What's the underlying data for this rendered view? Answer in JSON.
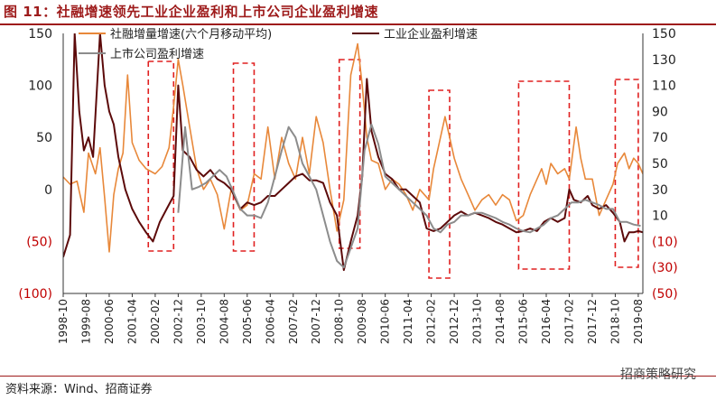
{
  "figure": {
    "title": "图 11：社融增速领先工业企业盈利和上市公司企业盈利增速",
    "source": "资料来源：Wind、招商证券",
    "watermark": "招商策略研究"
  },
  "colors": {
    "social_finance": "#e8883a",
    "industrial_profit": "#5c0a0a",
    "listed_profit": "#8c8c8c",
    "title": "#9e1b1b",
    "box": "#e02020"
  },
  "chart_data": {
    "type": "line",
    "title": "",
    "y_left": {
      "range": [
        -100,
        150
      ],
      "ticks": [
        "150",
        "100",
        "50",
        "0",
        "(50)",
        "(100)"
      ],
      "tick_values": [
        150,
        100,
        50,
        0,
        -50,
        -100
      ]
    },
    "y_right": {
      "range": [
        -50,
        150
      ],
      "ticks": [
        "150",
        "130",
        "110",
        "90",
        "70",
        "50",
        "30",
        "10",
        "(10)",
        "(30)",
        "(50)"
      ],
      "tick_values": [
        150,
        130,
        110,
        90,
        70,
        50,
        30,
        10,
        -10,
        -30,
        -50
      ]
    },
    "x_ticks": [
      "1998-10",
      "1999-08",
      "2000-06",
      "2001-04",
      "2002-02",
      "2002-12",
      "2003-10",
      "2004-08",
      "2005-06",
      "2006-04",
      "2007-02",
      "2007-12",
      "2008-10",
      "2009-08",
      "2010-06",
      "2011-04",
      "2012-02",
      "2012-12",
      "2013-10",
      "2014-08",
      "2015-06",
      "2016-04",
      "2017-02",
      "2017-12",
      "2018-10",
      "2019-08"
    ],
    "x_range": [
      "1998-10",
      "2019-10"
    ],
    "grid": false,
    "legend": "top",
    "series": [
      {
        "name": "社融增量增速(六个月移动平均)",
        "axis": "left",
        "color": "#e8883a",
        "points": [
          [
            "1998-10",
            12
          ],
          [
            "1999-01",
            5
          ],
          [
            "1999-04",
            8
          ],
          [
            "1999-07",
            -22
          ],
          [
            "1999-09",
            35
          ],
          [
            "1999-12",
            15
          ],
          [
            "2000-02",
            40
          ],
          [
            "2000-04",
            -8
          ],
          [
            "2000-06",
            -60
          ],
          [
            "2000-08",
            -5
          ],
          [
            "2000-10",
            20
          ],
          [
            "2000-12",
            35
          ],
          [
            "2001-02",
            110
          ],
          [
            "2001-04",
            45
          ],
          [
            "2001-07",
            28
          ],
          [
            "2001-10",
            20
          ],
          [
            "2002-02",
            15
          ],
          [
            "2002-05",
            22
          ],
          [
            "2002-08",
            40
          ],
          [
            "2002-10",
            80
          ],
          [
            "2002-12",
            125
          ],
          [
            "2003-02",
            100
          ],
          [
            "2003-05",
            60
          ],
          [
            "2003-08",
            20
          ],
          [
            "2003-11",
            0
          ],
          [
            "2004-02",
            10
          ],
          [
            "2004-05",
            -5
          ],
          [
            "2004-08",
            -38
          ],
          [
            "2004-11",
            0
          ],
          [
            "2005-03",
            -20
          ],
          [
            "2005-06",
            -15
          ],
          [
            "2005-09",
            15
          ],
          [
            "2005-12",
            10
          ],
          [
            "2006-03",
            60
          ],
          [
            "2006-06",
            10
          ],
          [
            "2006-09",
            50
          ],
          [
            "2006-12",
            25
          ],
          [
            "2007-03",
            10
          ],
          [
            "2007-06",
            50
          ],
          [
            "2007-09",
            15
          ],
          [
            "2007-12",
            70
          ],
          [
            "2008-03",
            45
          ],
          [
            "2008-06",
            0
          ],
          [
            "2008-09",
            -40
          ],
          [
            "2008-12",
            -10
          ],
          [
            "2009-03",
            110
          ],
          [
            "2009-06",
            140
          ],
          [
            "2009-08",
            100
          ],
          [
            "2009-10",
            50
          ],
          [
            "2009-12",
            28
          ],
          [
            "2010-03",
            25
          ],
          [
            "2010-06",
            0
          ],
          [
            "2010-09",
            10
          ],
          [
            "2010-12",
            5
          ],
          [
            "2011-03",
            -5
          ],
          [
            "2011-06",
            -20
          ],
          [
            "2011-09",
            0
          ],
          [
            "2012-01",
            -10
          ],
          [
            "2012-03",
            20
          ],
          [
            "2012-05",
            40
          ],
          [
            "2012-08",
            70
          ],
          [
            "2012-10",
            50
          ],
          [
            "2012-12",
            30
          ],
          [
            "2013-03",
            10
          ],
          [
            "2013-06",
            -5
          ],
          [
            "2013-09",
            -20
          ],
          [
            "2013-12",
            -10
          ],
          [
            "2014-03",
            -5
          ],
          [
            "2014-06",
            -15
          ],
          [
            "2014-09",
            -5
          ],
          [
            "2014-12",
            -10
          ],
          [
            "2015-03",
            -30
          ],
          [
            "2015-06",
            -25
          ],
          [
            "2015-09",
            -5
          ],
          [
            "2015-12",
            10
          ],
          [
            "2016-02",
            20
          ],
          [
            "2016-04",
            5
          ],
          [
            "2016-06",
            25
          ],
          [
            "2016-09",
            15
          ],
          [
            "2016-12",
            20
          ],
          [
            "2017-02",
            10
          ],
          [
            "2017-05",
            60
          ],
          [
            "2017-07",
            30
          ],
          [
            "2017-09",
            10
          ],
          [
            "2017-12",
            10
          ],
          [
            "2018-03",
            -25
          ],
          [
            "2018-06",
            -10
          ],
          [
            "2018-09",
            5
          ],
          [
            "2018-11",
            25
          ],
          [
            "2019-02",
            35
          ],
          [
            "2019-04",
            20
          ],
          [
            "2019-06",
            30
          ],
          [
            "2019-08",
            25
          ],
          [
            "2019-10",
            15
          ]
        ]
      },
      {
        "name": "工业企业盈利增速",
        "axis": "right",
        "color": "#5c0a0a",
        "points": [
          [
            "1998-10",
            -22
          ],
          [
            "1999-01",
            -5
          ],
          [
            "1999-03",
            150
          ],
          [
            "1999-05",
            90
          ],
          [
            "1999-07",
            60
          ],
          [
            "1999-09",
            70
          ],
          [
            "1999-11",
            55
          ],
          [
            "2000-02",
            150
          ],
          [
            "2000-04",
            110
          ],
          [
            "2000-06",
            90
          ],
          [
            "2000-08",
            80
          ],
          [
            "2000-10",
            55
          ],
          [
            "2001-01",
            30
          ],
          [
            "2001-04",
            15
          ],
          [
            "2001-07",
            5
          ],
          [
            "2001-10",
            -3
          ],
          [
            "2002-01",
            -10
          ],
          [
            "2002-04",
            5
          ],
          [
            "2002-07",
            15
          ],
          [
            "2002-10",
            25
          ],
          [
            "2002-12",
            110
          ],
          [
            "2003-02",
            60
          ],
          [
            "2003-05",
            55
          ],
          [
            "2003-08",
            45
          ],
          [
            "2003-11",
            40
          ],
          [
            "2004-02",
            45
          ],
          [
            "2004-05",
            38
          ],
          [
            "2004-08",
            35
          ],
          [
            "2004-11",
            30
          ],
          [
            "2005-03",
            15
          ],
          [
            "2005-06",
            20
          ],
          [
            "2005-09",
            18
          ],
          [
            "2005-12",
            20
          ],
          [
            "2006-03",
            25
          ],
          [
            "2006-06",
            25
          ],
          [
            "2006-09",
            30
          ],
          [
            "2006-12",
            35
          ],
          [
            "2007-03",
            40
          ],
          [
            "2007-06",
            42
          ],
          [
            "2007-09",
            37
          ],
          [
            "2007-12",
            37
          ],
          [
            "2008-03",
            35
          ],
          [
            "2008-06",
            20
          ],
          [
            "2008-09",
            10
          ],
          [
            "2008-12",
            -32
          ],
          [
            "2009-03",
            -10
          ],
          [
            "2009-06",
            10
          ],
          [
            "2009-08",
            40
          ],
          [
            "2009-10",
            115
          ],
          [
            "2009-12",
            75
          ],
          [
            "2010-03",
            55
          ],
          [
            "2010-06",
            42
          ],
          [
            "2010-09",
            38
          ],
          [
            "2010-12",
            30
          ],
          [
            "2011-03",
            30
          ],
          [
            "2011-06",
            25
          ],
          [
            "2011-09",
            20
          ],
          [
            "2011-12",
            0
          ],
          [
            "2012-03",
            -2
          ],
          [
            "2012-06",
            0
          ],
          [
            "2012-09",
            5
          ],
          [
            "2012-12",
            10
          ],
          [
            "2013-03",
            13
          ],
          [
            "2013-06",
            10
          ],
          [
            "2013-09",
            12
          ],
          [
            "2013-12",
            10
          ],
          [
            "2014-03",
            8
          ],
          [
            "2014-06",
            5
          ],
          [
            "2014-09",
            3
          ],
          [
            "2014-12",
            0
          ],
          [
            "2015-03",
            -3
          ],
          [
            "2015-06",
            -2
          ],
          [
            "2015-09",
            0
          ],
          [
            "2015-12",
            -2
          ],
          [
            "2016-03",
            5
          ],
          [
            "2016-06",
            8
          ],
          [
            "2016-09",
            5
          ],
          [
            "2016-12",
            8
          ],
          [
            "2017-02",
            30
          ],
          [
            "2017-04",
            22
          ],
          [
            "2017-07",
            20
          ],
          [
            "2017-10",
            25
          ],
          [
            "2017-12",
            18
          ],
          [
            "2018-03",
            15
          ],
          [
            "2018-06",
            18
          ],
          [
            "2018-09",
            12
          ],
          [
            "2018-12",
            5
          ],
          [
            "2019-02",
            -10
          ],
          [
            "2019-04",
            -3
          ],
          [
            "2019-06",
            -3
          ],
          [
            "2019-08",
            -2
          ],
          [
            "2019-10",
            -3
          ]
        ]
      },
      {
        "name": "上市公司盈利增速",
        "axis": "right",
        "color": "#8c8c8c",
        "points": [
          [
            "2002-12",
            12
          ],
          [
            "2003-03",
            78
          ],
          [
            "2003-06",
            30
          ],
          [
            "2003-09",
            32
          ],
          [
            "2003-12",
            35
          ],
          [
            "2004-03",
            40
          ],
          [
            "2004-06",
            45
          ],
          [
            "2004-09",
            40
          ],
          [
            "2004-12",
            28
          ],
          [
            "2005-03",
            15
          ],
          [
            "2005-06",
            10
          ],
          [
            "2005-09",
            10
          ],
          [
            "2005-12",
            8
          ],
          [
            "2006-03",
            20
          ],
          [
            "2006-06",
            40
          ],
          [
            "2006-09",
            60
          ],
          [
            "2006-12",
            78
          ],
          [
            "2007-03",
            70
          ],
          [
            "2007-06",
            50
          ],
          [
            "2007-09",
            40
          ],
          [
            "2007-12",
            30
          ],
          [
            "2008-03",
            10
          ],
          [
            "2008-06",
            -10
          ],
          [
            "2008-09",
            -25
          ],
          [
            "2008-12",
            -30
          ],
          [
            "2009-03",
            -15
          ],
          [
            "2009-06",
            0
          ],
          [
            "2009-09",
            60
          ],
          [
            "2009-12",
            80
          ],
          [
            "2010-03",
            65
          ],
          [
            "2010-06",
            40
          ],
          [
            "2010-09",
            35
          ],
          [
            "2010-12",
            30
          ],
          [
            "2011-03",
            25
          ],
          [
            "2011-06",
            20
          ],
          [
            "2011-09",
            15
          ],
          [
            "2011-12",
            10
          ],
          [
            "2012-03",
            0
          ],
          [
            "2012-06",
            -3
          ],
          [
            "2012-09",
            3
          ],
          [
            "2012-12",
            5
          ],
          [
            "2013-03",
            10
          ],
          [
            "2013-06",
            10
          ],
          [
            "2013-09",
            12
          ],
          [
            "2013-12",
            12
          ],
          [
            "2014-03",
            10
          ],
          [
            "2014-06",
            8
          ],
          [
            "2014-09",
            5
          ],
          [
            "2014-12",
            3
          ],
          [
            "2015-03",
            0
          ],
          [
            "2015-06",
            -2
          ],
          [
            "2015-09",
            -3
          ],
          [
            "2015-12",
            0
          ],
          [
            "2016-03",
            3
          ],
          [
            "2016-06",
            8
          ],
          [
            "2016-09",
            10
          ],
          [
            "2016-12",
            15
          ],
          [
            "2017-03",
            20
          ],
          [
            "2017-06",
            20
          ],
          [
            "2017-09",
            22
          ],
          [
            "2017-12",
            20
          ],
          [
            "2018-03",
            18
          ],
          [
            "2018-06",
            15
          ],
          [
            "2018-09",
            15
          ],
          [
            "2018-12",
            5
          ],
          [
            "2019-03",
            5
          ],
          [
            "2019-06",
            3
          ],
          [
            "2019-09",
            2
          ]
        ]
      }
    ],
    "boxes": [
      [
        "2001-11",
        "2002-10"
      ],
      [
        "2004-12",
        "2005-09"
      ],
      [
        "2008-10",
        "2009-07"
      ],
      [
        "2012-01",
        "2012-10"
      ],
      [
        "2015-04",
        "2017-02"
      ],
      [
        "2018-10",
        "2019-08"
      ]
    ]
  }
}
